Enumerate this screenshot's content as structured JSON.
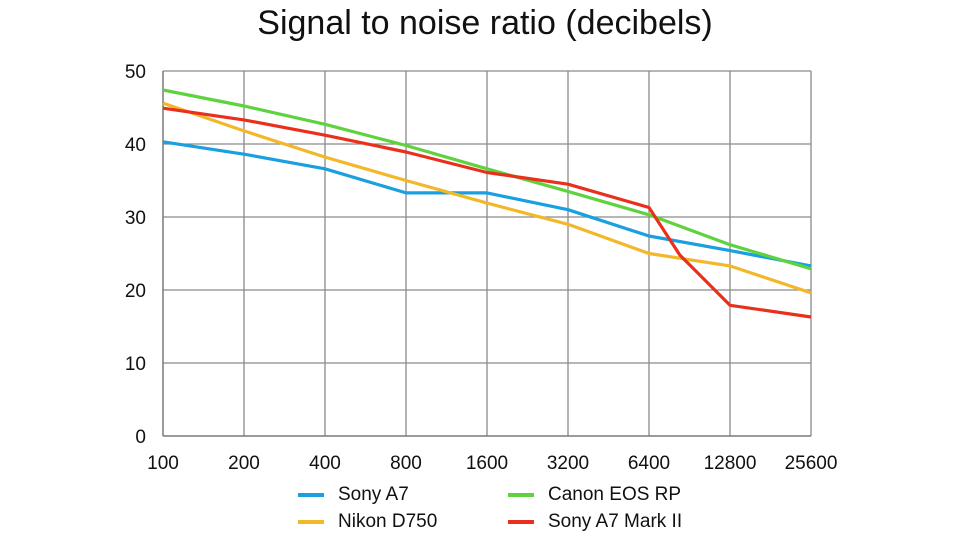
{
  "chart_data": {
    "type": "line",
    "title": "Signal to noise ratio (decibels)",
    "xlabel": "",
    "ylabel": "",
    "categories": [
      "100",
      "200",
      "400",
      "800",
      "1600",
      "3200",
      "6400",
      "12800",
      "25600"
    ],
    "ylim": [
      0,
      50
    ],
    "yticks": [
      0,
      10,
      20,
      30,
      40,
      50
    ],
    "grid": true,
    "legend_position": "bottom",
    "series": [
      {
        "name": "Sony A7",
        "color": "#1a9fe0",
        "values": [
          40.3,
          38.6,
          36.6,
          33.3,
          33.3,
          31.0,
          27.4,
          25.4,
          23.3
        ]
      },
      {
        "name": "Nikon D750",
        "color": "#f2b82a",
        "values": [
          45.6,
          41.8,
          38.2,
          35.0,
          31.9,
          29.0,
          25.0,
          23.3,
          19.6
        ]
      },
      {
        "name": "Canon EOS RP",
        "color": "#5fd23f",
        "values": [
          47.4,
          45.2,
          42.7,
          39.8,
          36.6,
          33.5,
          30.3,
          26.2,
          22.9
        ]
      },
      {
        "name": "Sony A7 Mark II",
        "color": "#e8301c",
        "values": [
          44.9,
          43.3,
          41.2,
          38.9,
          36.1,
          34.5,
          31.3,
          17.9,
          16.3
        ],
        "points_override": null
      }
    ]
  },
  "legend": {
    "items": [
      {
        "label": "Sony A7",
        "color": "#1a9fe0"
      },
      {
        "label": "Canon EOS RP",
        "color": "#5fd23f"
      },
      {
        "label": "Nikon D750",
        "color": "#f2b82a"
      },
      {
        "label": "Sony A7 Mark II",
        "color": "#e8301c"
      }
    ]
  }
}
